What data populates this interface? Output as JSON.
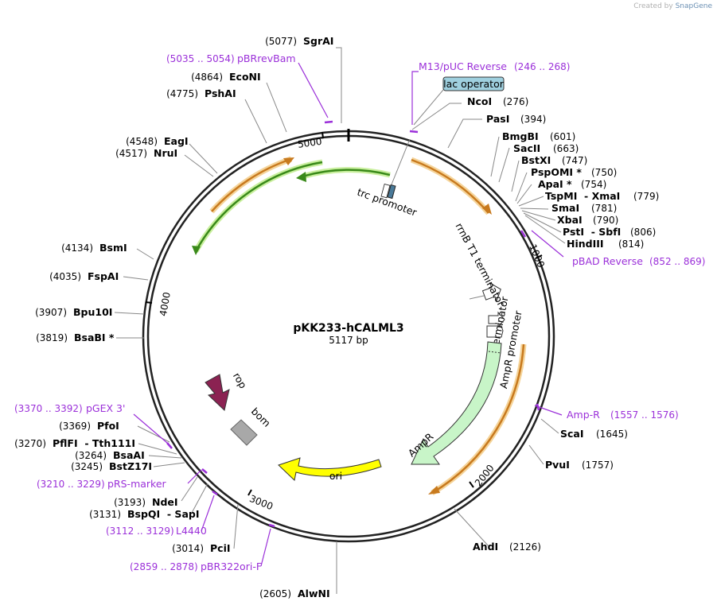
{
  "credit": {
    "prefix": "Created by",
    "brand": "SnapGene"
  },
  "plasmid": {
    "name": "pKK233-hCALML3",
    "size": "5117 bp",
    "length": 5117
  },
  "scale_ticks": [
    {
      "value": 1000,
      "label": "1000"
    },
    {
      "value": 2000,
      "label": "2000"
    },
    {
      "value": 3000,
      "label": "3000"
    },
    {
      "value": 4000,
      "label": "4000"
    },
    {
      "value": 5000,
      "label": "5000"
    }
  ],
  "enzymes": [
    {
      "name": "SgrAI",
      "pos": "(5077)"
    },
    {
      "name": "EcoNI",
      "pos": "(4864)"
    },
    {
      "name": "PshAI",
      "pos": "(4775)"
    },
    {
      "name": "EagI",
      "pos": "(4548)"
    },
    {
      "name": "NruI",
      "pos": "(4517)"
    },
    {
      "name": "BsmI",
      "pos": "(4134)"
    },
    {
      "name": "FspAI",
      "pos": "(4035)"
    },
    {
      "name": "Bpu10I",
      "pos": "(3907)"
    },
    {
      "name": "BsaBI *",
      "pos": "(3819)"
    },
    {
      "name": "PfoI",
      "pos": "(3369)"
    },
    {
      "name": "PflFI  - Tth111I",
      "pos": "(3270)"
    },
    {
      "name": "BsaAI",
      "pos": "(3264)"
    },
    {
      "name": "BstZ17I",
      "pos": "(3245)"
    },
    {
      "name": "NdeI",
      "pos": "(3193)"
    },
    {
      "name": "BspQI  - SapI",
      "pos": "(3131)"
    },
    {
      "name": "PciI",
      "pos": "(3014)"
    },
    {
      "name": "AlwNI",
      "pos": "(2605)"
    },
    {
      "name": "NcoI",
      "pos": "(276)"
    },
    {
      "name": "PasI",
      "pos": "(394)"
    },
    {
      "name": "BmgBI",
      "pos": "(601)"
    },
    {
      "name": "SacII",
      "pos": "(663)"
    },
    {
      "name": "BstXI",
      "pos": "(747)"
    },
    {
      "name": "PspOMI *",
      "pos": "(750)"
    },
    {
      "name": "ApaI *",
      "pos": "(754)"
    },
    {
      "name": "TspMI  - XmaI",
      "pos": "(779)"
    },
    {
      "name": "SmaI",
      "pos": "(781)"
    },
    {
      "name": "XbaI",
      "pos": "(790)"
    },
    {
      "name": "PstI  - SbfI",
      "pos": "(806)"
    },
    {
      "name": "HindIII",
      "pos": "(814)"
    },
    {
      "name": "ScaI",
      "pos": "(1645)"
    },
    {
      "name": "PvuI",
      "pos": "(1757)"
    },
    {
      "name": "AhdI",
      "pos": "(2126)"
    }
  ],
  "primers": [
    {
      "name": "pBRrevBam",
      "range": "(5035 .. 5054)"
    },
    {
      "name": "M13/pUC Reverse",
      "range": "(246 .. 268)"
    },
    {
      "name": "pBAD Reverse",
      "range": "(852 .. 869)"
    },
    {
      "name": "Amp-R",
      "range": "(1557 .. 1576)"
    },
    {
      "name": "pGEX 3'",
      "range": "(3370 .. 3392)"
    },
    {
      "name": "pRS-marker",
      "range": "(3210 .. 3229)"
    },
    {
      "name": "L4440",
      "range": "(3112 .. 3129)"
    },
    {
      "name": "pBR322ori-F",
      "range": "(2859 .. 2878)"
    }
  ],
  "features": {
    "lac_operator": "lac operator",
    "trc_promoter": "trc promoter",
    "rrnB_T1": "rrnB T1 terminator",
    "rrnB_T2": "rrnB T2 terminator",
    "AmpR_promoter": "AmpR promoter",
    "AmpR": "AmpR",
    "ori": "ori",
    "rop": "rop",
    "bom": "bom"
  },
  "colors": {
    "backbone": "#222222",
    "enzyme_line": "#888888",
    "primer": "#9b30d9",
    "orf_orange": "#c87a1e",
    "orf_orange_glow": "#f5d49a",
    "orf_green": "#3a8a1a",
    "orf_green_glow": "#c9ef9e",
    "AmpR_fill": "#c8f5c8",
    "ori_fill": "#ffff00",
    "rop_fill": "#8b2252",
    "bom_fill": "#a8a8a8",
    "lac_fill": "#9fd0df",
    "promoter_fill": "#ffffff"
  }
}
